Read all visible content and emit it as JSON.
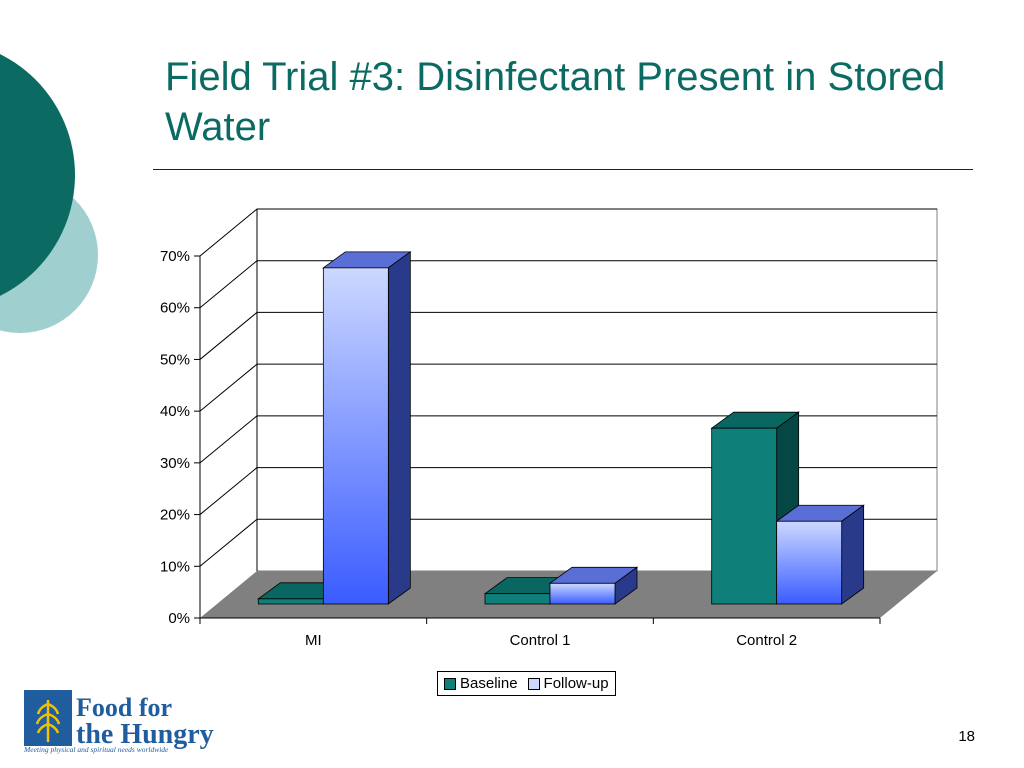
{
  "slide": {
    "title": "Field Trial #3: Disinfectant Present in Stored Water",
    "page_number": "18"
  },
  "brand": {
    "name_line1": "Food for",
    "name_line2": "the Hungry",
    "tagline": "Meeting physical and spiritual needs worldwide",
    "color": "#1f5d9e"
  },
  "colors": {
    "accent_dark": "#0b6b63",
    "accent_light": "#9fcfcf",
    "baseline": "#0f7f7a",
    "followup_light": "#ccd8ff",
    "followup_dark": "#3a5cff"
  },
  "chart_data": {
    "type": "bar",
    "three_d": true,
    "categories": [
      "MI",
      "Control 1",
      "Control 2"
    ],
    "series": [
      {
        "name": "Baseline",
        "values": [
          1,
          2,
          34
        ]
      },
      {
        "name": "Follow-up",
        "values": [
          65,
          4,
          16
        ]
      }
    ],
    "yticks": [
      "0%",
      "10%",
      "20%",
      "30%",
      "40%",
      "50%",
      "60%",
      "70%"
    ],
    "ylim": [
      0,
      70
    ],
    "grid": true,
    "legend_position": "bottom"
  }
}
